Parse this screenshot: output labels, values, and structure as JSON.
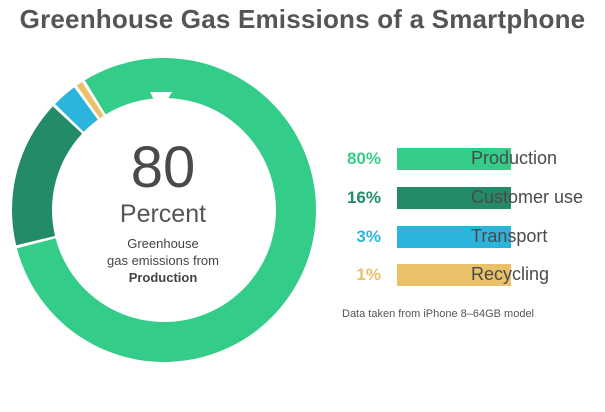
{
  "chart_data": {
    "type": "pie",
    "title": "Greenhouse Gas Emissions of a Smartphone",
    "slices": [
      {
        "label": "Production",
        "value": 80,
        "display": "80%",
        "color": "#33cc88"
      },
      {
        "label": "Customer use",
        "value": 16,
        "display": "16%",
        "color": "#238a6a"
      },
      {
        "label": "Transport",
        "value": 3,
        "display": "3%",
        "color": "#2bb5dd"
      },
      {
        "label": "Recycling",
        "value": 1,
        "display": "1%",
        "color": "#e9c169"
      }
    ],
    "center": {
      "value": "80",
      "unit": "Percent",
      "caption_line1": "Greenhouse",
      "caption_line2": "gas emissions from",
      "caption_line3": "Production"
    },
    "legend_placement": "right",
    "note": "Data taken from iPhone 8–64GB model"
  }
}
